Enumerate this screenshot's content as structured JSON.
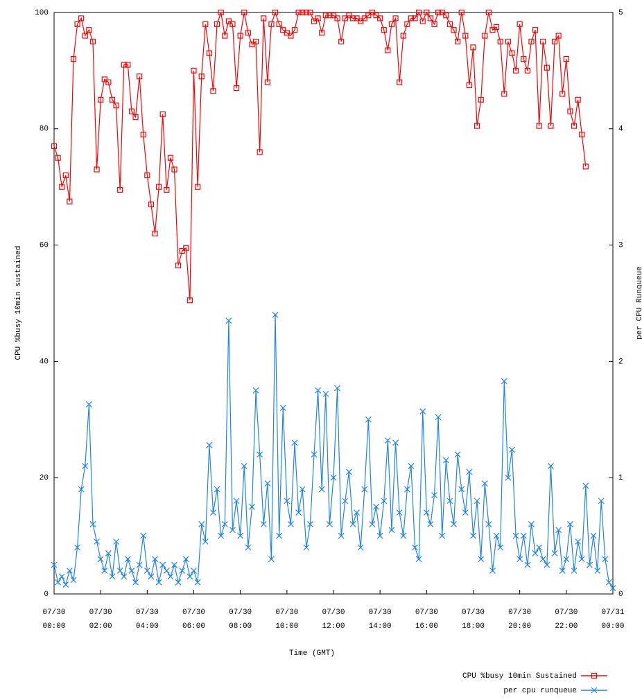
{
  "chart_data": {
    "type": "line",
    "x_label": "Time (GMT)",
    "y_label": "CPU %busy 10min sustained",
    "y2_label": "per CPU Runqueue",
    "xlim": [
      0,
      1440
    ],
    "xticks": [
      {
        "value": 0,
        "label": "07/30 00:00"
      },
      {
        "value": 120,
        "label": "07/30 02:00"
      },
      {
        "value": 240,
        "label": "07/30 04:00"
      },
      {
        "value": 360,
        "label": "07/30 06:00"
      },
      {
        "value": 480,
        "label": "07/30 08:00"
      },
      {
        "value": 600,
        "label": "07/30 10:00"
      },
      {
        "value": 720,
        "label": "07/30 12:00"
      },
      {
        "value": 840,
        "label": "07/30 14:00"
      },
      {
        "value": 960,
        "label": "07/30 16:00"
      },
      {
        "value": 1080,
        "label": "07/30 18:00"
      },
      {
        "value": 1200,
        "label": "07/30 20:00"
      },
      {
        "value": 1320,
        "label": "07/30 22:00"
      },
      {
        "value": 1440,
        "label": "07/31 00:00"
      }
    ],
    "ylim": [
      0,
      100
    ],
    "yticks": [
      0,
      20,
      40,
      60,
      80,
      100
    ],
    "y2lim": [
      0,
      5
    ],
    "y2ticks": [
      0,
      1,
      2,
      3,
      4,
      5
    ],
    "legend": "bottom-right",
    "series": [
      {
        "name": "CPU %busy 10min Sustained",
        "color": "#ff0000",
        "marker": "square",
        "axis": "y",
        "x": [
          0,
          10,
          20,
          30,
          40,
          50,
          60,
          70,
          80,
          90,
          100,
          110,
          120,
          130,
          140,
          150,
          160,
          170,
          180,
          190,
          200,
          210,
          220,
          230,
          240,
          250,
          260,
          270,
          280,
          290,
          300,
          310,
          320,
          330,
          340,
          350,
          360,
          370,
          380,
          390,
          400,
          410,
          420,
          430,
          440,
          450,
          460,
          470,
          480,
          490,
          500,
          510,
          520,
          530,
          540,
          550,
          560,
          570,
          580,
          590,
          600,
          610,
          620,
          630,
          640,
          650,
          660,
          670,
          680,
          690,
          700,
          710,
          720,
          730,
          740,
          750,
          760,
          770,
          780,
          790,
          800,
          810,
          820,
          830,
          840,
          850,
          860,
          870,
          880,
          890,
          900,
          910,
          920,
          930,
          940,
          950,
          960,
          970,
          980,
          990,
          1000,
          1010,
          1020,
          1030,
          1040,
          1050,
          1060,
          1070,
          1080,
          1090,
          1100,
          1110,
          1120,
          1130,
          1140,
          1150,
          1160,
          1170,
          1180,
          1190,
          1200,
          1210,
          1220,
          1230,
          1240,
          1250,
          1260,
          1270,
          1280,
          1290,
          1300,
          1310,
          1320,
          1330,
          1340,
          1350,
          1360,
          1370
        ],
        "values": [
          77,
          75,
          70,
          72,
          67.5,
          92,
          98,
          99,
          96,
          97,
          95,
          73,
          85,
          88.5,
          88,
          85,
          84,
          69.5,
          91,
          91,
          83,
          82,
          89,
          79,
          72,
          67,
          62,
          70,
          82.5,
          69.5,
          75,
          73,
          56.5,
          59,
          59.5,
          50.5,
          90,
          70,
          89,
          98,
          93,
          86.5,
          98,
          100,
          96,
          98.5,
          98,
          87,
          96,
          100,
          96.5,
          94.5,
          95,
          76,
          99,
          88,
          98,
          100,
          98,
          97,
          96.5,
          96,
          97,
          100,
          100,
          100,
          100,
          98.5,
          99,
          96.5,
          99.5,
          99.5,
          99.5,
          99,
          95,
          99,
          99.5,
          99,
          99,
          98.5,
          99,
          99.5,
          100,
          99.5,
          99,
          97,
          93.5,
          98,
          99,
          88,
          96,
          98,
          99,
          99,
          100,
          98.5,
          100,
          99,
          98,
          100,
          100,
          99.5,
          98,
          97,
          95,
          100,
          96,
          87.5,
          94,
          80.5,
          85,
          96,
          100,
          97,
          97.5,
          95,
          86,
          95,
          93,
          90,
          98,
          92,
          90,
          95,
          97,
          80.5,
          95,
          90.5,
          80.5,
          95,
          96,
          86,
          92,
          83,
          80.5,
          85,
          79,
          73.5
        ]
      },
      {
        "name": "per cpu runqueue",
        "color": "#1e82f0",
        "marker": "x",
        "axis": "y2",
        "x": [
          0,
          10,
          20,
          30,
          40,
          50,
          60,
          70,
          80,
          90,
          100,
          110,
          120,
          130,
          140,
          150,
          160,
          170,
          180,
          190,
          200,
          210,
          220,
          230,
          240,
          250,
          260,
          270,
          280,
          290,
          300,
          310,
          320,
          330,
          340,
          350,
          360,
          370,
          380,
          390,
          400,
          410,
          420,
          430,
          440,
          450,
          460,
          470,
          480,
          490,
          500,
          510,
          520,
          530,
          540,
          550,
          560,
          570,
          580,
          590,
          600,
          610,
          620,
          630,
          640,
          650,
          660,
          670,
          680,
          690,
          700,
          710,
          720,
          730,
          740,
          750,
          760,
          770,
          780,
          790,
          800,
          810,
          820,
          830,
          840,
          850,
          860,
          870,
          880,
          890,
          900,
          910,
          920,
          930,
          940,
          950,
          960,
          970,
          980,
          990,
          1000,
          1010,
          1020,
          1030,
          1040,
          1050,
          1060,
          1070,
          1080,
          1090,
          1100,
          1110,
          1120,
          1130,
          1140,
          1150,
          1160,
          1170,
          1180,
          1190,
          1200,
          1210,
          1220,
          1230,
          1240,
          1250,
          1260,
          1270,
          1280,
          1290,
          1300,
          1310,
          1320,
          1330,
          1340,
          1350,
          1360,
          1370,
          1380,
          1390,
          1400,
          1410,
          1420,
          1430,
          1440
        ],
        "values": [
          0.25,
          0.1,
          0.15,
          0.08,
          0.2,
          0.12,
          0.4,
          0.9,
          1.1,
          1.63,
          0.6,
          0.45,
          0.3,
          0.2,
          0.35,
          0.15,
          0.45,
          0.2,
          0.15,
          0.3,
          0.2,
          0.1,
          0.25,
          0.5,
          0.2,
          0.15,
          0.3,
          0.1,
          0.25,
          0.2,
          0.15,
          0.25,
          0.1,
          0.2,
          0.3,
          0.15,
          0.2,
          0.1,
          0.6,
          0.45,
          1.28,
          0.7,
          0.9,
          0.5,
          0.6,
          2.35,
          0.55,
          0.8,
          0.5,
          1.1,
          0.4,
          0.75,
          1.75,
          1.2,
          0.6,
          0.95,
          0.3,
          2.4,
          0.5,
          1.6,
          0.8,
          0.6,
          1.3,
          0.7,
          0.9,
          0.4,
          0.6,
          1.2,
          1.75,
          0.9,
          1.72,
          0.6,
          1.0,
          1.77,
          0.5,
          0.8,
          1.05,
          0.6,
          0.7,
          0.4,
          0.9,
          1.5,
          0.6,
          0.75,
          0.5,
          0.8,
          1.32,
          0.55,
          1.3,
          0.7,
          0.5,
          0.9,
          1.1,
          0.4,
          0.3,
          1.57,
          0.7,
          0.6,
          0.85,
          1.52,
          0.5,
          1.15,
          0.8,
          0.6,
          1.2,
          0.9,
          0.7,
          1.05,
          0.5,
          0.8,
          0.3,
          0.95,
          0.6,
          0.2,
          0.5,
          0.4,
          1.83,
          1.0,
          1.24,
          0.5,
          0.3,
          0.5,
          0.25,
          0.6,
          0.35,
          0.4,
          0.3,
          0.25,
          1.1,
          0.35,
          0.55,
          0.2,
          0.3,
          0.6,
          0.2,
          0.45,
          0.3,
          0.93,
          0.25,
          0.5,
          0.2,
          0.8,
          0.3,
          0.1,
          0.05
        ]
      }
    ]
  }
}
